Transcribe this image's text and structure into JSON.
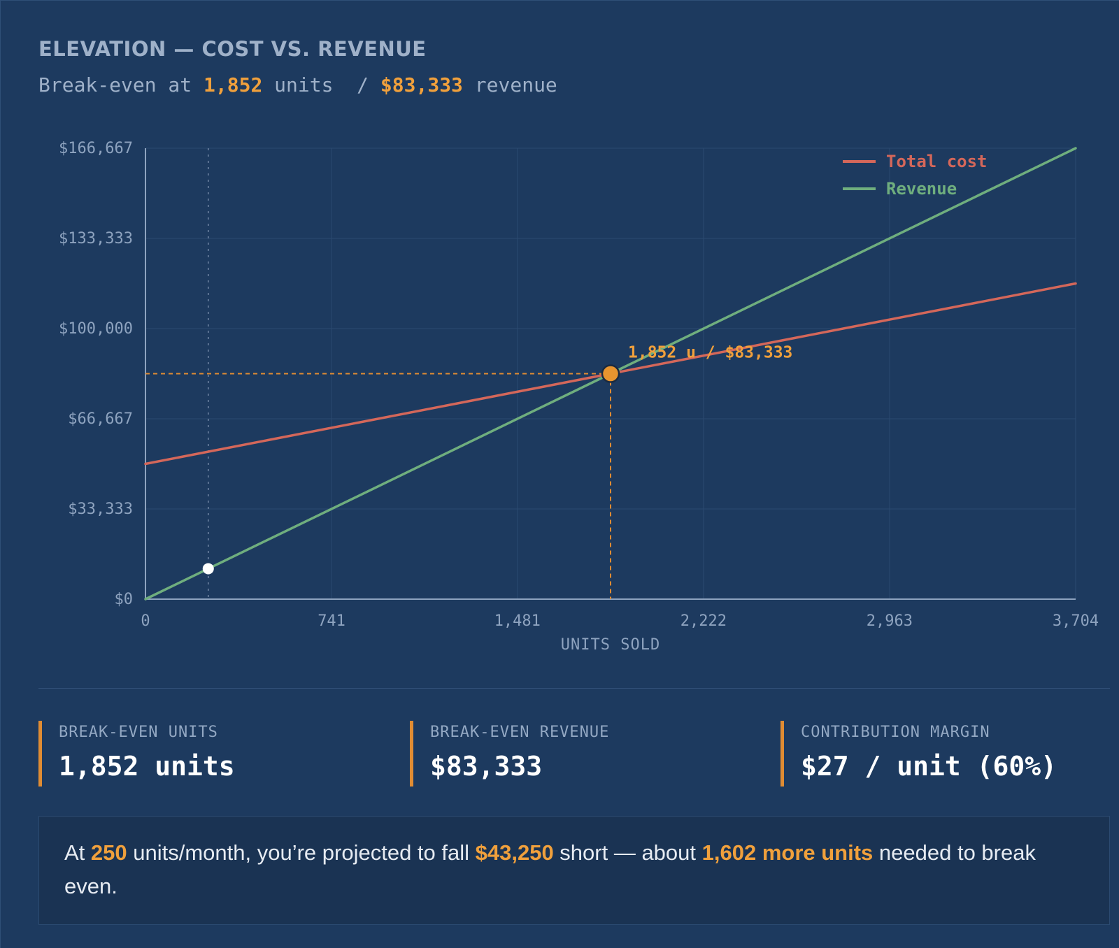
{
  "header": {
    "title": "ELEVATION — COST VS. REVENUE",
    "subtitle_prefix": "Break-even at ",
    "subtitle_units": "1,852",
    "subtitle_units_suffix": " units",
    "subtitle_separator": "  / ",
    "subtitle_revenue": "$83,333",
    "subtitle_revenue_suffix": " revenue"
  },
  "colors": {
    "cost": "#d4675a",
    "revenue": "#6fae7e",
    "accent": "#f0a03c",
    "background": "#1d3a5f"
  },
  "chart_data": {
    "type": "line",
    "xlabel": "UNITS SOLD",
    "ylabel": "",
    "xlim": [
      0,
      3704
    ],
    "ylim": [
      0,
      166667
    ],
    "x_ticks": [
      0,
      741,
      1481,
      2222,
      2963,
      3704
    ],
    "x_tick_labels": [
      "0",
      "741",
      "1,481",
      "2,222",
      "2,963",
      "3,704"
    ],
    "y_ticks": [
      0,
      33333,
      66667,
      100000,
      133333,
      166667
    ],
    "y_tick_labels": [
      "$0",
      "$33,333",
      "$66,667",
      "$100,000",
      "$133,333",
      "$166,667"
    ],
    "grid": true,
    "legend_position": "top-right",
    "series": [
      {
        "name": "Total cost",
        "color": "#d4675a",
        "x": [
          0,
          3704
        ],
        "y": [
          50000,
          116667
        ]
      },
      {
        "name": "Revenue",
        "color": "#6fae7e",
        "x": [
          0,
          3704
        ],
        "y": [
          0,
          166667
        ]
      }
    ],
    "break_even": {
      "x": 1852,
      "y": 83333,
      "label": "1,852 u / $83,333"
    },
    "current_point": {
      "x": 250,
      "y": 11250
    }
  },
  "stats": [
    {
      "label": "BREAK-EVEN UNITS",
      "value": "1,852 units"
    },
    {
      "label": "BREAK-EVEN REVENUE",
      "value": "$83,333"
    },
    {
      "label": "CONTRIBUTION MARGIN",
      "value": "$27 / unit (60%)"
    }
  ],
  "note": {
    "t1": "At ",
    "units": "250",
    "t2": " units/month, you’re projected to fall ",
    "shortfall": "$43,250",
    "t3": " short — about ",
    "more_units": "1,602 more units",
    "t4": " needed to break even."
  }
}
